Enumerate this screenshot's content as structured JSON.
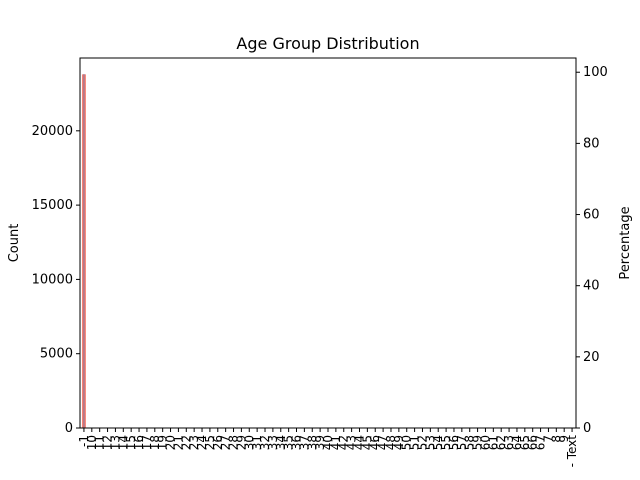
{
  "chart_data": {
    "type": "bar",
    "title": "Age Group Distribution",
    "xlabel": "",
    "ylabel": "Count",
    "ylabel_right": "Percentage",
    "categories": [
      "-1",
      "10",
      "11",
      "12",
      "13",
      "14",
      "15",
      "16",
      "17",
      "18",
      "19",
      "20",
      "21",
      "22",
      "23",
      "24",
      "25",
      "26",
      "27",
      "28",
      "29",
      "30",
      "31",
      "32",
      "33",
      "34",
      "35",
      "36",
      "37",
      "38",
      "39",
      "40",
      "41",
      "42",
      "43",
      "44",
      "45",
      "46",
      "47",
      "48",
      "49",
      "50",
      "51",
      "52",
      "53",
      "54",
      "55",
      "56",
      "57",
      "58",
      "59",
      "60",
      "61",
      "62",
      "63",
      "64",
      "65",
      "66",
      "67",
      "7",
      "8",
      "9",
      "- Text"
    ],
    "values": [
      23800,
      8,
      6,
      5,
      5,
      4,
      4,
      4,
      4,
      4,
      4,
      4,
      4,
      4,
      4,
      4,
      4,
      4,
      4,
      4,
      4,
      3,
      3,
      3,
      3,
      3,
      3,
      3,
      3,
      3,
      3,
      3,
      3,
      3,
      3,
      3,
      3,
      3,
      3,
      3,
      3,
      3,
      3,
      2,
      2,
      2,
      2,
      2,
      2,
      2,
      2,
      2,
      2,
      2,
      2,
      2,
      2,
      2,
      2,
      2,
      2,
      2,
      1
    ],
    "percent_values": [
      99.5,
      0.03,
      0.03,
      0.02,
      0.02,
      0.02,
      0.02,
      0.02,
      0.02,
      0.02,
      0.02,
      0.02,
      0.02,
      0.02,
      0.02,
      0.02,
      0.02,
      0.02,
      0.02,
      0.02,
      0.02,
      0.01,
      0.01,
      0.01,
      0.01,
      0.01,
      0.01,
      0.01,
      0.01,
      0.01,
      0.01,
      0.01,
      0.01,
      0.01,
      0.01,
      0.01,
      0.01,
      0.01,
      0.01,
      0.01,
      0.01,
      0.01,
      0.01,
      0.01,
      0.01,
      0.01,
      0.01,
      0.01,
      0.01,
      0.01,
      0.01,
      0.01,
      0.01,
      0.01,
      0.01,
      0.01,
      0.01,
      0.01,
      0.01,
      0.01,
      0.01,
      0.01,
      0.0
    ],
    "ylim": [
      0,
      24900
    ],
    "ylim_right": [
      0,
      104
    ],
    "yticks": [
      0,
      5000,
      10000,
      15000,
      20000
    ],
    "yticks_right": [
      0,
      20,
      40,
      60,
      80,
      100
    ],
    "grid": false,
    "bar_color": "#fa8072",
    "line_color": "#4c72b0"
  }
}
